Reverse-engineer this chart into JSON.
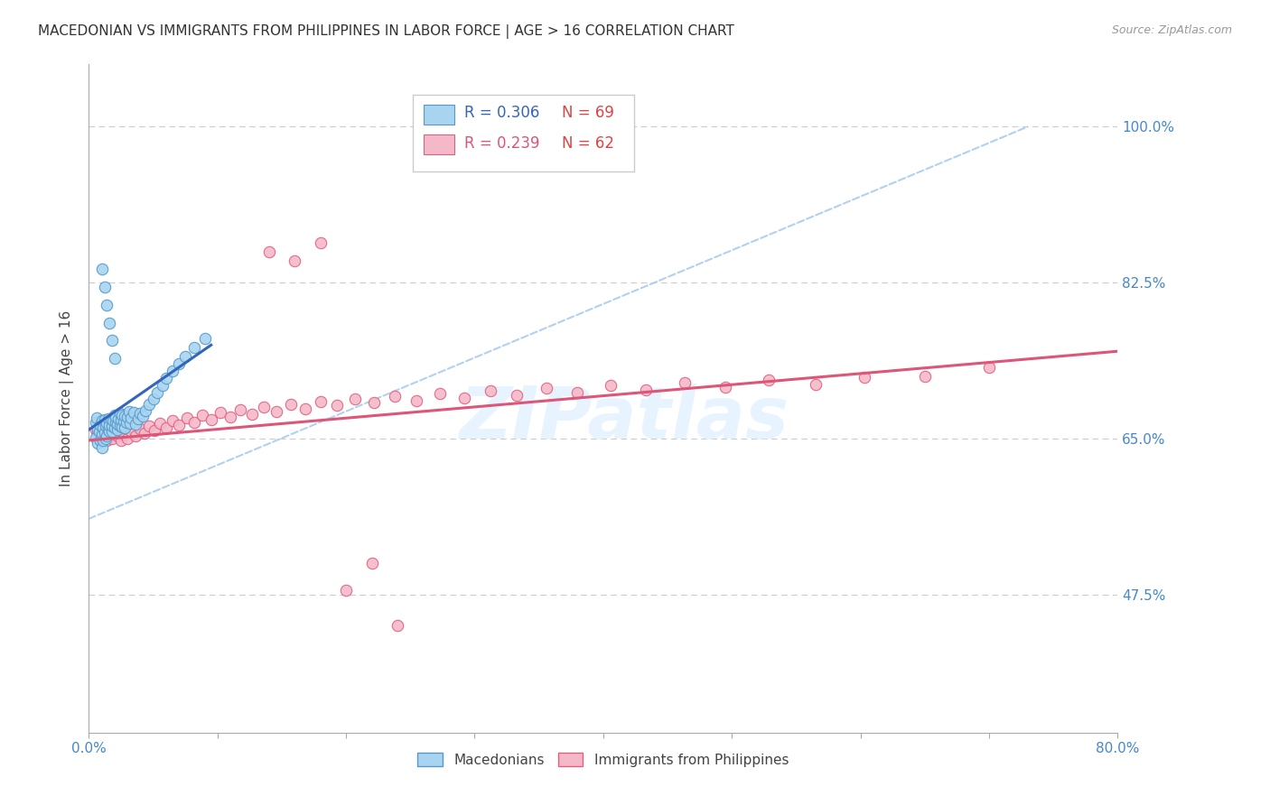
{
  "title": "MACEDONIAN VS IMMIGRANTS FROM PHILIPPINES IN LABOR FORCE | AGE > 16 CORRELATION CHART",
  "source": "Source: ZipAtlas.com",
  "ylabel": "In Labor Force | Age > 16",
  "xlim": [
    0.0,
    0.8
  ],
  "ylim": [
    0.32,
    1.07
  ],
  "yticks": [
    0.475,
    0.65,
    0.825,
    1.0
  ],
  "ytick_labels": [
    "47.5%",
    "65.0%",
    "82.5%",
    "100.0%"
  ],
  "xtick_positions": [
    0.0,
    0.1,
    0.2,
    0.3,
    0.4,
    0.5,
    0.6,
    0.7,
    0.8
  ],
  "xtick_labels_ends": {
    "0": "0.0%",
    "8": "80.0%"
  },
  "blue_color": "#A8D4F0",
  "blue_edge_color": "#5599CC",
  "pink_color": "#F5B8C8",
  "pink_edge_color": "#E06080",
  "blue_line_color": "#3366BB",
  "pink_line_color": "#DD5577",
  "dashed_line_color": "#AACCEE",
  "legend_R_blue": "R = 0.306",
  "legend_N_blue": "N = 69",
  "legend_R_pink": "R = 0.239",
  "legend_N_pink": "N = 62",
  "legend_label_blue": "Macedonians",
  "legend_label_pink": "Immigrants from Philippines",
  "blue_R_color": "#3366BB",
  "pink_R_color": "#DD5577",
  "N_color": "#DD4444",
  "watermark_text": "ZIPatlas",
  "background_color": "#ffffff",
  "title_color": "#333333",
  "axis_label_color": "#444444",
  "tick_color": "#4488CC",
  "grid_color": "#CCCCCC",
  "marker_size": 80,
  "mac_x": [
    0.005,
    0.005,
    0.006,
    0.007,
    0.007,
    0.008,
    0.009,
    0.009,
    0.01,
    0.01,
    0.01,
    0.011,
    0.011,
    0.012,
    0.012,
    0.013,
    0.013,
    0.014,
    0.014,
    0.015,
    0.015,
    0.016,
    0.016,
    0.017,
    0.018,
    0.018,
    0.019,
    0.02,
    0.02,
    0.021,
    0.021,
    0.022,
    0.022,
    0.023,
    0.024,
    0.024,
    0.025,
    0.026,
    0.026,
    0.027,
    0.028,
    0.028,
    0.029,
    0.03,
    0.031,
    0.032,
    0.033,
    0.035,
    0.036,
    0.038,
    0.04,
    0.042,
    0.044,
    0.047,
    0.05,
    0.053,
    0.057,
    0.06,
    0.065,
    0.07,
    0.075,
    0.082,
    0.09,
    0.01,
    0.012,
    0.014,
    0.016,
    0.018,
    0.02
  ],
  "mac_y": [
    0.668,
    0.651,
    0.673,
    0.66,
    0.645,
    0.658,
    0.665,
    0.648,
    0.67,
    0.655,
    0.64,
    0.662,
    0.648,
    0.671,
    0.657,
    0.664,
    0.65,
    0.667,
    0.653,
    0.66,
    0.672,
    0.658,
    0.665,
    0.671,
    0.658,
    0.664,
    0.67,
    0.676,
    0.662,
    0.668,
    0.674,
    0.66,
    0.666,
    0.672,
    0.678,
    0.664,
    0.67,
    0.676,
    0.663,
    0.669,
    0.675,
    0.662,
    0.668,
    0.674,
    0.68,
    0.667,
    0.673,
    0.679,
    0.666,
    0.672,
    0.678,
    0.675,
    0.681,
    0.688,
    0.695,
    0.702,
    0.71,
    0.718,
    0.726,
    0.734,
    0.742,
    0.752,
    0.762,
    0.84,
    0.82,
    0.8,
    0.78,
    0.76,
    0.74
  ],
  "phil_x": [
    0.005,
    0.007,
    0.009,
    0.01,
    0.012,
    0.014,
    0.016,
    0.018,
    0.02,
    0.022,
    0.025,
    0.028,
    0.03,
    0.033,
    0.036,
    0.04,
    0.043,
    0.047,
    0.051,
    0.055,
    0.06,
    0.065,
    0.07,
    0.076,
    0.082,
    0.088,
    0.095,
    0.102,
    0.11,
    0.118,
    0.127,
    0.136,
    0.146,
    0.157,
    0.168,
    0.18,
    0.193,
    0.207,
    0.222,
    0.238,
    0.255,
    0.273,
    0.292,
    0.312,
    0.333,
    0.356,
    0.38,
    0.406,
    0.433,
    0.463,
    0.495,
    0.529,
    0.565,
    0.603,
    0.14,
    0.16,
    0.18,
    0.2,
    0.22,
    0.24,
    0.65,
    0.7
  ],
  "phil_y": [
    0.66,
    0.655,
    0.65,
    0.658,
    0.653,
    0.648,
    0.655,
    0.65,
    0.658,
    0.653,
    0.648,
    0.655,
    0.65,
    0.658,
    0.653,
    0.661,
    0.656,
    0.664,
    0.659,
    0.667,
    0.662,
    0.67,
    0.665,
    0.673,
    0.668,
    0.676,
    0.671,
    0.679,
    0.674,
    0.682,
    0.677,
    0.685,
    0.68,
    0.688,
    0.683,
    0.692,
    0.687,
    0.695,
    0.69,
    0.698,
    0.693,
    0.701,
    0.696,
    0.704,
    0.699,
    0.707,
    0.702,
    0.71,
    0.705,
    0.713,
    0.708,
    0.716,
    0.711,
    0.719,
    0.86,
    0.85,
    0.87,
    0.48,
    0.51,
    0.44,
    0.72,
    0.73
  ],
  "blue_trendline_x": [
    0.0,
    0.095
  ],
  "blue_trendline_y": [
    0.66,
    0.755
  ],
  "pink_trendline_x": [
    0.0,
    0.8
  ],
  "pink_trendline_y": [
    0.648,
    0.748
  ],
  "dashed_line_x": [
    0.0,
    0.73
  ],
  "dashed_line_y": [
    0.56,
    1.0
  ]
}
